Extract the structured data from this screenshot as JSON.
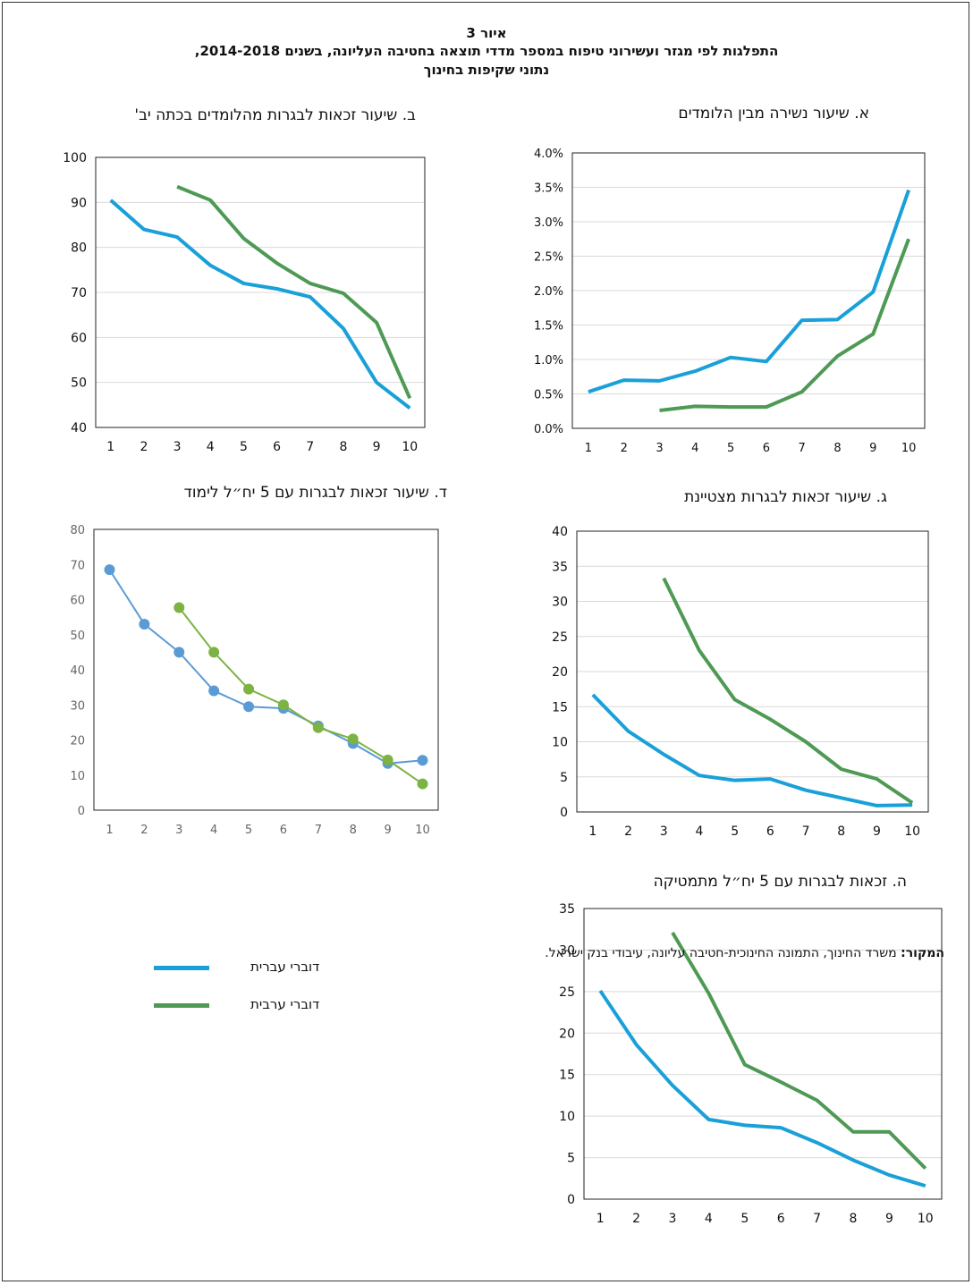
{
  "figure": {
    "number": "איור 3",
    "title": "התפלגות לפי מגזר ועשירוני טיפוח במספר מדדי תוצאה בחטיבה העליונה, בשנים 2014-2018,",
    "subtitle": "נתוני שקיפות בחינוך"
  },
  "colors": {
    "hebrew": "#1aa0d8",
    "arabic": "#4e9a55",
    "hebrew_marker": "#5b9bd5",
    "arabic_marker": "#7cb342"
  },
  "legend": [
    {
      "label": "דוברי עברית",
      "color": "#1aa0d8"
    },
    {
      "label": "דוברי ערבית",
      "color": "#4e9a55"
    }
  ],
  "source": {
    "label": "המקור:",
    "text": " משרד החינוך, התמונה החינוכית-חטיבה עליונה, עיבודי בנק ישראל."
  },
  "chart_data": [
    {
      "id": "a",
      "type": "line",
      "title": "א. שיעור נשירה מבין הלומדים",
      "x": [
        1,
        2,
        3,
        4,
        5,
        6,
        7,
        8,
        9,
        10
      ],
      "ylim": [
        0,
        4.0
      ],
      "yticks": [
        "0.0%",
        "0.5%",
        "1.0%",
        "1.5%",
        "2.0%",
        "2.5%",
        "3.0%",
        "3.5%",
        "4.0%"
      ],
      "grid": true,
      "series": [
        {
          "name": "דוברי עברית",
          "values": [
            0.53,
            0.7,
            0.69,
            0.83,
            1.03,
            0.97,
            1.57,
            1.58,
            1.98,
            3.46
          ]
        },
        {
          "name": "דוברי ערבית",
          "values": [
            null,
            null,
            0.26,
            0.32,
            0.31,
            0.31,
            0.53,
            1.05,
            1.37,
            2.75
          ]
        }
      ]
    },
    {
      "id": "b",
      "type": "line",
      "title": "ב. שיעור זכאות לבגרות מהלומדים בכתה יב'",
      "x": [
        1,
        2,
        3,
        4,
        5,
        6,
        7,
        8,
        9,
        10
      ],
      "ylim": [
        40,
        100
      ],
      "yticks": [
        "40",
        "50",
        "60",
        "70",
        "80",
        "90",
        "100"
      ],
      "grid": true,
      "series": [
        {
          "name": "דוברי עברית",
          "values": [
            90.5,
            84,
            82.3,
            76,
            72,
            70.8,
            69,
            62,
            50,
            44.3
          ]
        },
        {
          "name": "דוברי ערבית",
          "values": [
            null,
            null,
            93.5,
            90.5,
            82,
            76.5,
            72,
            69.8,
            63.3,
            46.5
          ]
        }
      ]
    },
    {
      "id": "g",
      "type": "line",
      "title": "ג. שיעור זכאות לבגרות מצטיינת",
      "x": [
        1,
        2,
        3,
        4,
        5,
        6,
        7,
        8,
        9,
        10
      ],
      "ylim": [
        0,
        40
      ],
      "yticks": [
        "0",
        "5",
        "10",
        "15",
        "20",
        "25",
        "30",
        "35",
        "40"
      ],
      "grid": true,
      "series": [
        {
          "name": "דוברי עברית",
          "values": [
            16.7,
            11.5,
            8.2,
            5.2,
            4.5,
            4.7,
            3.1,
            2.0,
            0.9,
            1.0
          ]
        },
        {
          "name": "דוברי ערבית",
          "values": [
            null,
            null,
            33.3,
            23,
            16,
            13.2,
            10,
            6.1,
            4.7,
            1.3
          ]
        }
      ]
    },
    {
      "id": "d",
      "type": "line",
      "markers": true,
      "title": "ד. שיעור זכאות לבגרות עם 5 יח״ל לימוד",
      "x": [
        1,
        2,
        3,
        4,
        5,
        6,
        7,
        8,
        9,
        10
      ],
      "ylim": [
        0,
        80
      ],
      "yticks": [
        "0",
        "10",
        "20",
        "30",
        "40",
        "50",
        "60",
        "70",
        "80"
      ],
      "grid": false,
      "series": [
        {
          "name": "דוברי עברית",
          "values": [
            68.5,
            53,
            45,
            34,
            29.5,
            29,
            24,
            19,
            13.3,
            14.2
          ]
        },
        {
          "name": "דוברי ערבית",
          "values": [
            null,
            null,
            57.7,
            45,
            34.5,
            30,
            23.5,
            20.3,
            14.3,
            7.5
          ]
        }
      ]
    },
    {
      "id": "h",
      "type": "line",
      "title": "ה. זכאות לבגרות עם 5 יח״ל מתמטיקה",
      "x": [
        1,
        2,
        3,
        4,
        5,
        6,
        7,
        8,
        9,
        10
      ],
      "ylim": [
        0,
        35
      ],
      "yticks": [
        "0",
        "5",
        "10",
        "15",
        "20",
        "25",
        "30",
        "35"
      ],
      "grid": true,
      "series": [
        {
          "name": "דוברי עברית",
          "values": [
            25.1,
            18.6,
            13.7,
            9.6,
            8.9,
            8.6,
            6.8,
            4.7,
            2.9,
            1.6
          ]
        },
        {
          "name": "דוברי ערבית",
          "values": [
            null,
            null,
            32.1,
            24.8,
            16.2,
            14.1,
            11.9,
            8.1,
            8.1,
            3.7
          ]
        }
      ]
    }
  ]
}
